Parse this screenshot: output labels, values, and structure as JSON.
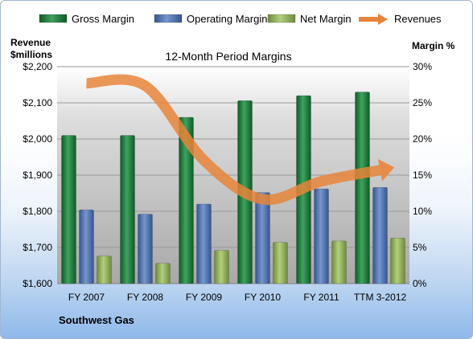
{
  "chart_data": {
    "type": "bar",
    "title": "12-Month Period Margins",
    "company": "Southwest Gas",
    "categories": [
      "FY 2007",
      "FY 2008",
      "FY 2009",
      "FY 2010",
      "FY 2011",
      "TTM 3-2012"
    ],
    "y_left": {
      "label_line1": "Revenue",
      "label_line2": "$millions",
      "lim": [
        1600,
        2200
      ],
      "ticks": [
        "$1,600",
        "$1,700",
        "$1,800",
        "$1,900",
        "$2,000",
        "$2,100",
        "$2,200"
      ]
    },
    "y_right": {
      "label": "Margin %",
      "lim": [
        0,
        30
      ],
      "ticks": [
        "0%",
        "5%",
        "10%",
        "15%",
        "20%",
        "25%",
        "30%"
      ]
    },
    "series": [
      {
        "name": "Gross Margin",
        "axis": "right",
        "color": "#1f7a3c",
        "values": [
          20.5,
          20.5,
          23.0,
          25.3,
          26.0,
          26.5
        ]
      },
      {
        "name": "Operating Margin",
        "axis": "right",
        "color": "#4b6fad",
        "values": [
          10.2,
          9.6,
          11.0,
          12.6,
          13.1,
          13.3
        ]
      },
      {
        "name": "Net Margin",
        "axis": "right",
        "color": "#8fb05a",
        "values": [
          3.8,
          2.8,
          4.6,
          5.7,
          5.9,
          6.3
        ]
      },
      {
        "name": "Revenues",
        "axis": "left",
        "type": "line",
        "color": "#e8853a",
        "values": [
          2154,
          2147,
          1941,
          1833,
          1883,
          1914
        ]
      }
    ],
    "legend_position": "top",
    "grid": true
  }
}
